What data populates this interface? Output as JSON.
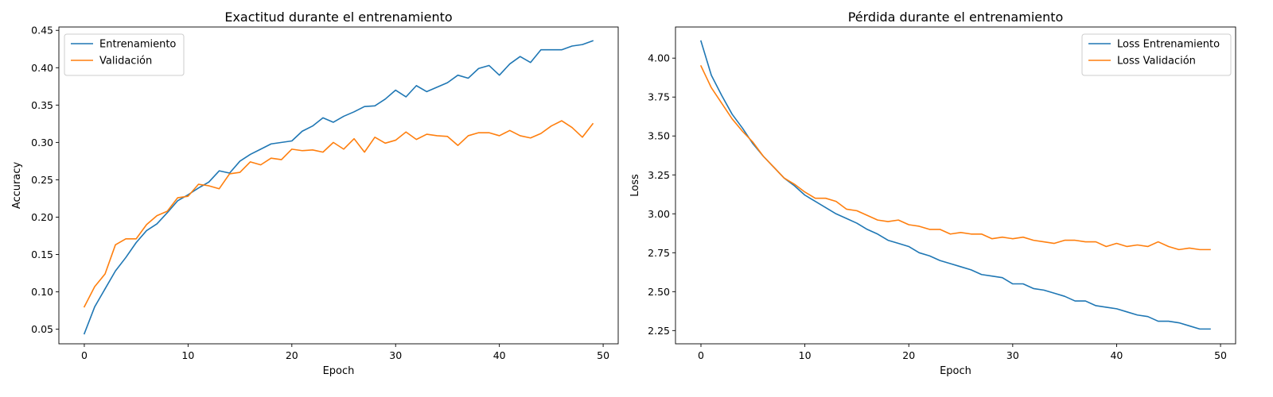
{
  "chart_data": [
    {
      "type": "line",
      "title": "Exactitud durante el entrenamiento",
      "xlabel": "Epoch",
      "ylabel": "Accuracy",
      "xlim": [
        -2.45,
        51.45
      ],
      "ylim": [
        0.0305,
        0.4545
      ],
      "xticks": [
        0,
        10,
        20,
        30,
        40,
        50
      ],
      "yticks": [
        0.05,
        0.1,
        0.15,
        0.2,
        0.25,
        0.3,
        0.35,
        0.4,
        0.45
      ],
      "ytick_decimals": 2,
      "grid": false,
      "legend_position": "top-left",
      "x": [
        0,
        1,
        2,
        3,
        4,
        5,
        6,
        7,
        8,
        9,
        10,
        11,
        12,
        13,
        14,
        15,
        16,
        17,
        18,
        19,
        20,
        21,
        22,
        23,
        24,
        25,
        26,
        27,
        28,
        29,
        30,
        31,
        32,
        33,
        34,
        35,
        36,
        37,
        38,
        39,
        40,
        41,
        42,
        43,
        44,
        45,
        46,
        47,
        48,
        49
      ],
      "series": [
        {
          "name": "Entrenamiento",
          "color": "#1f77b4",
          "values": [
            0.044,
            0.08,
            0.104,
            0.128,
            0.146,
            0.166,
            0.182,
            0.191,
            0.206,
            0.222,
            0.23,
            0.239,
            0.247,
            0.262,
            0.259,
            0.275,
            0.284,
            0.291,
            0.298,
            0.3,
            0.302,
            0.315,
            0.322,
            0.333,
            0.327,
            0.335,
            0.341,
            0.348,
            0.349,
            0.358,
            0.37,
            0.361,
            0.376,
            0.368,
            0.374,
            0.38,
            0.39,
            0.386,
            0.399,
            0.403,
            0.39,
            0.405,
            0.415,
            0.407,
            0.424,
            0.424,
            0.424,
            0.429,
            0.431,
            0.436
          ]
        },
        {
          "name": "Validación",
          "color": "#ff7f0e",
          "values": [
            0.08,
            0.107,
            0.124,
            0.163,
            0.171,
            0.171,
            0.19,
            0.202,
            0.208,
            0.226,
            0.228,
            0.244,
            0.242,
            0.238,
            0.258,
            0.26,
            0.274,
            0.27,
            0.279,
            0.277,
            0.291,
            0.289,
            0.29,
            0.287,
            0.3,
            0.291,
            0.305,
            0.287,
            0.307,
            0.299,
            0.303,
            0.314,
            0.304,
            0.311,
            0.309,
            0.308,
            0.296,
            0.309,
            0.313,
            0.313,
            0.309,
            0.316,
            0.309,
            0.306,
            0.312,
            0.322,
            0.329,
            0.32,
            0.307,
            0.325
          ]
        }
      ]
    },
    {
      "type": "line",
      "title": "Pérdida durante el entrenamiento",
      "xlabel": "Epoch",
      "ylabel": "Loss",
      "xlim": [
        -2.45,
        51.45
      ],
      "ylim": [
        2.165,
        4.2
      ],
      "xticks": [
        0,
        10,
        20,
        30,
        40,
        50
      ],
      "yticks": [
        2.25,
        2.5,
        2.75,
        3.0,
        3.25,
        3.5,
        3.75,
        4.0
      ],
      "ytick_decimals": 2,
      "grid": false,
      "legend_position": "top-right",
      "x": [
        0,
        1,
        2,
        3,
        4,
        5,
        6,
        7,
        8,
        9,
        10,
        11,
        12,
        13,
        14,
        15,
        16,
        17,
        18,
        19,
        20,
        21,
        22,
        23,
        24,
        25,
        26,
        27,
        28,
        29,
        30,
        31,
        32,
        33,
        34,
        35,
        36,
        37,
        38,
        39,
        40,
        41,
        42,
        43,
        44,
        45,
        46,
        47,
        48,
        49
      ],
      "series": [
        {
          "name": "Loss Entrenamiento",
          "color": "#1f77b4",
          "values": [
            4.11,
            3.89,
            3.76,
            3.64,
            3.55,
            3.45,
            3.37,
            3.3,
            3.23,
            3.18,
            3.12,
            3.08,
            3.04,
            3.0,
            2.97,
            2.94,
            2.9,
            2.87,
            2.83,
            2.81,
            2.79,
            2.75,
            2.73,
            2.7,
            2.68,
            2.66,
            2.64,
            2.61,
            2.6,
            2.59,
            2.55,
            2.55,
            2.52,
            2.51,
            2.49,
            2.47,
            2.44,
            2.44,
            2.41,
            2.4,
            2.39,
            2.37,
            2.35,
            2.34,
            2.31,
            2.31,
            2.3,
            2.28,
            2.26,
            2.26
          ]
        },
        {
          "name": "Loss Validación",
          "color": "#ff7f0e",
          "values": [
            3.95,
            3.81,
            3.71,
            3.61,
            3.53,
            3.46,
            3.37,
            3.3,
            3.23,
            3.19,
            3.14,
            3.1,
            3.1,
            3.08,
            3.03,
            3.02,
            2.99,
            2.96,
            2.95,
            2.96,
            2.93,
            2.92,
            2.9,
            2.9,
            2.87,
            2.88,
            2.87,
            2.87,
            2.84,
            2.85,
            2.84,
            2.85,
            2.83,
            2.82,
            2.81,
            2.83,
            2.83,
            2.82,
            2.82,
            2.79,
            2.81,
            2.79,
            2.8,
            2.79,
            2.82,
            2.79,
            2.77,
            2.78,
            2.77,
            2.77
          ]
        }
      ]
    }
  ]
}
